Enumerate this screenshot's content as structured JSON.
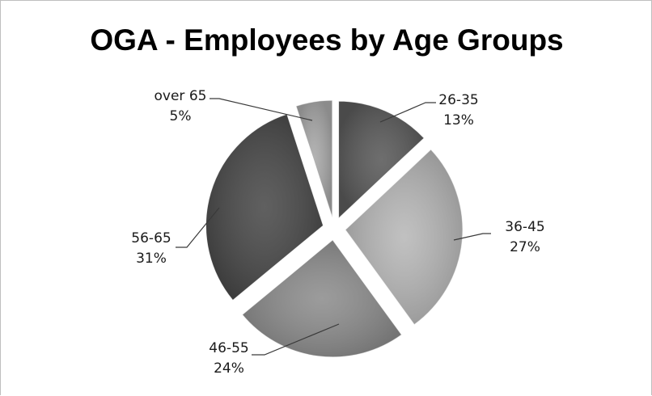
{
  "chart_data": {
    "type": "pie",
    "title": "OGA - Employees by Age Groups",
    "exploded": true,
    "categories": [
      "26-35",
      "36-45",
      "46-55",
      "56-65",
      "over 65"
    ],
    "values": [
      13,
      27,
      24,
      31,
      5
    ],
    "value_labels": [
      "13%",
      "27%",
      "24%",
      "31%",
      "5%"
    ],
    "colors": [
      "#5a5a5a",
      "#b8b8b8",
      "#8e8e8e",
      "#4a4a4a",
      "#a9a9a9"
    ]
  }
}
